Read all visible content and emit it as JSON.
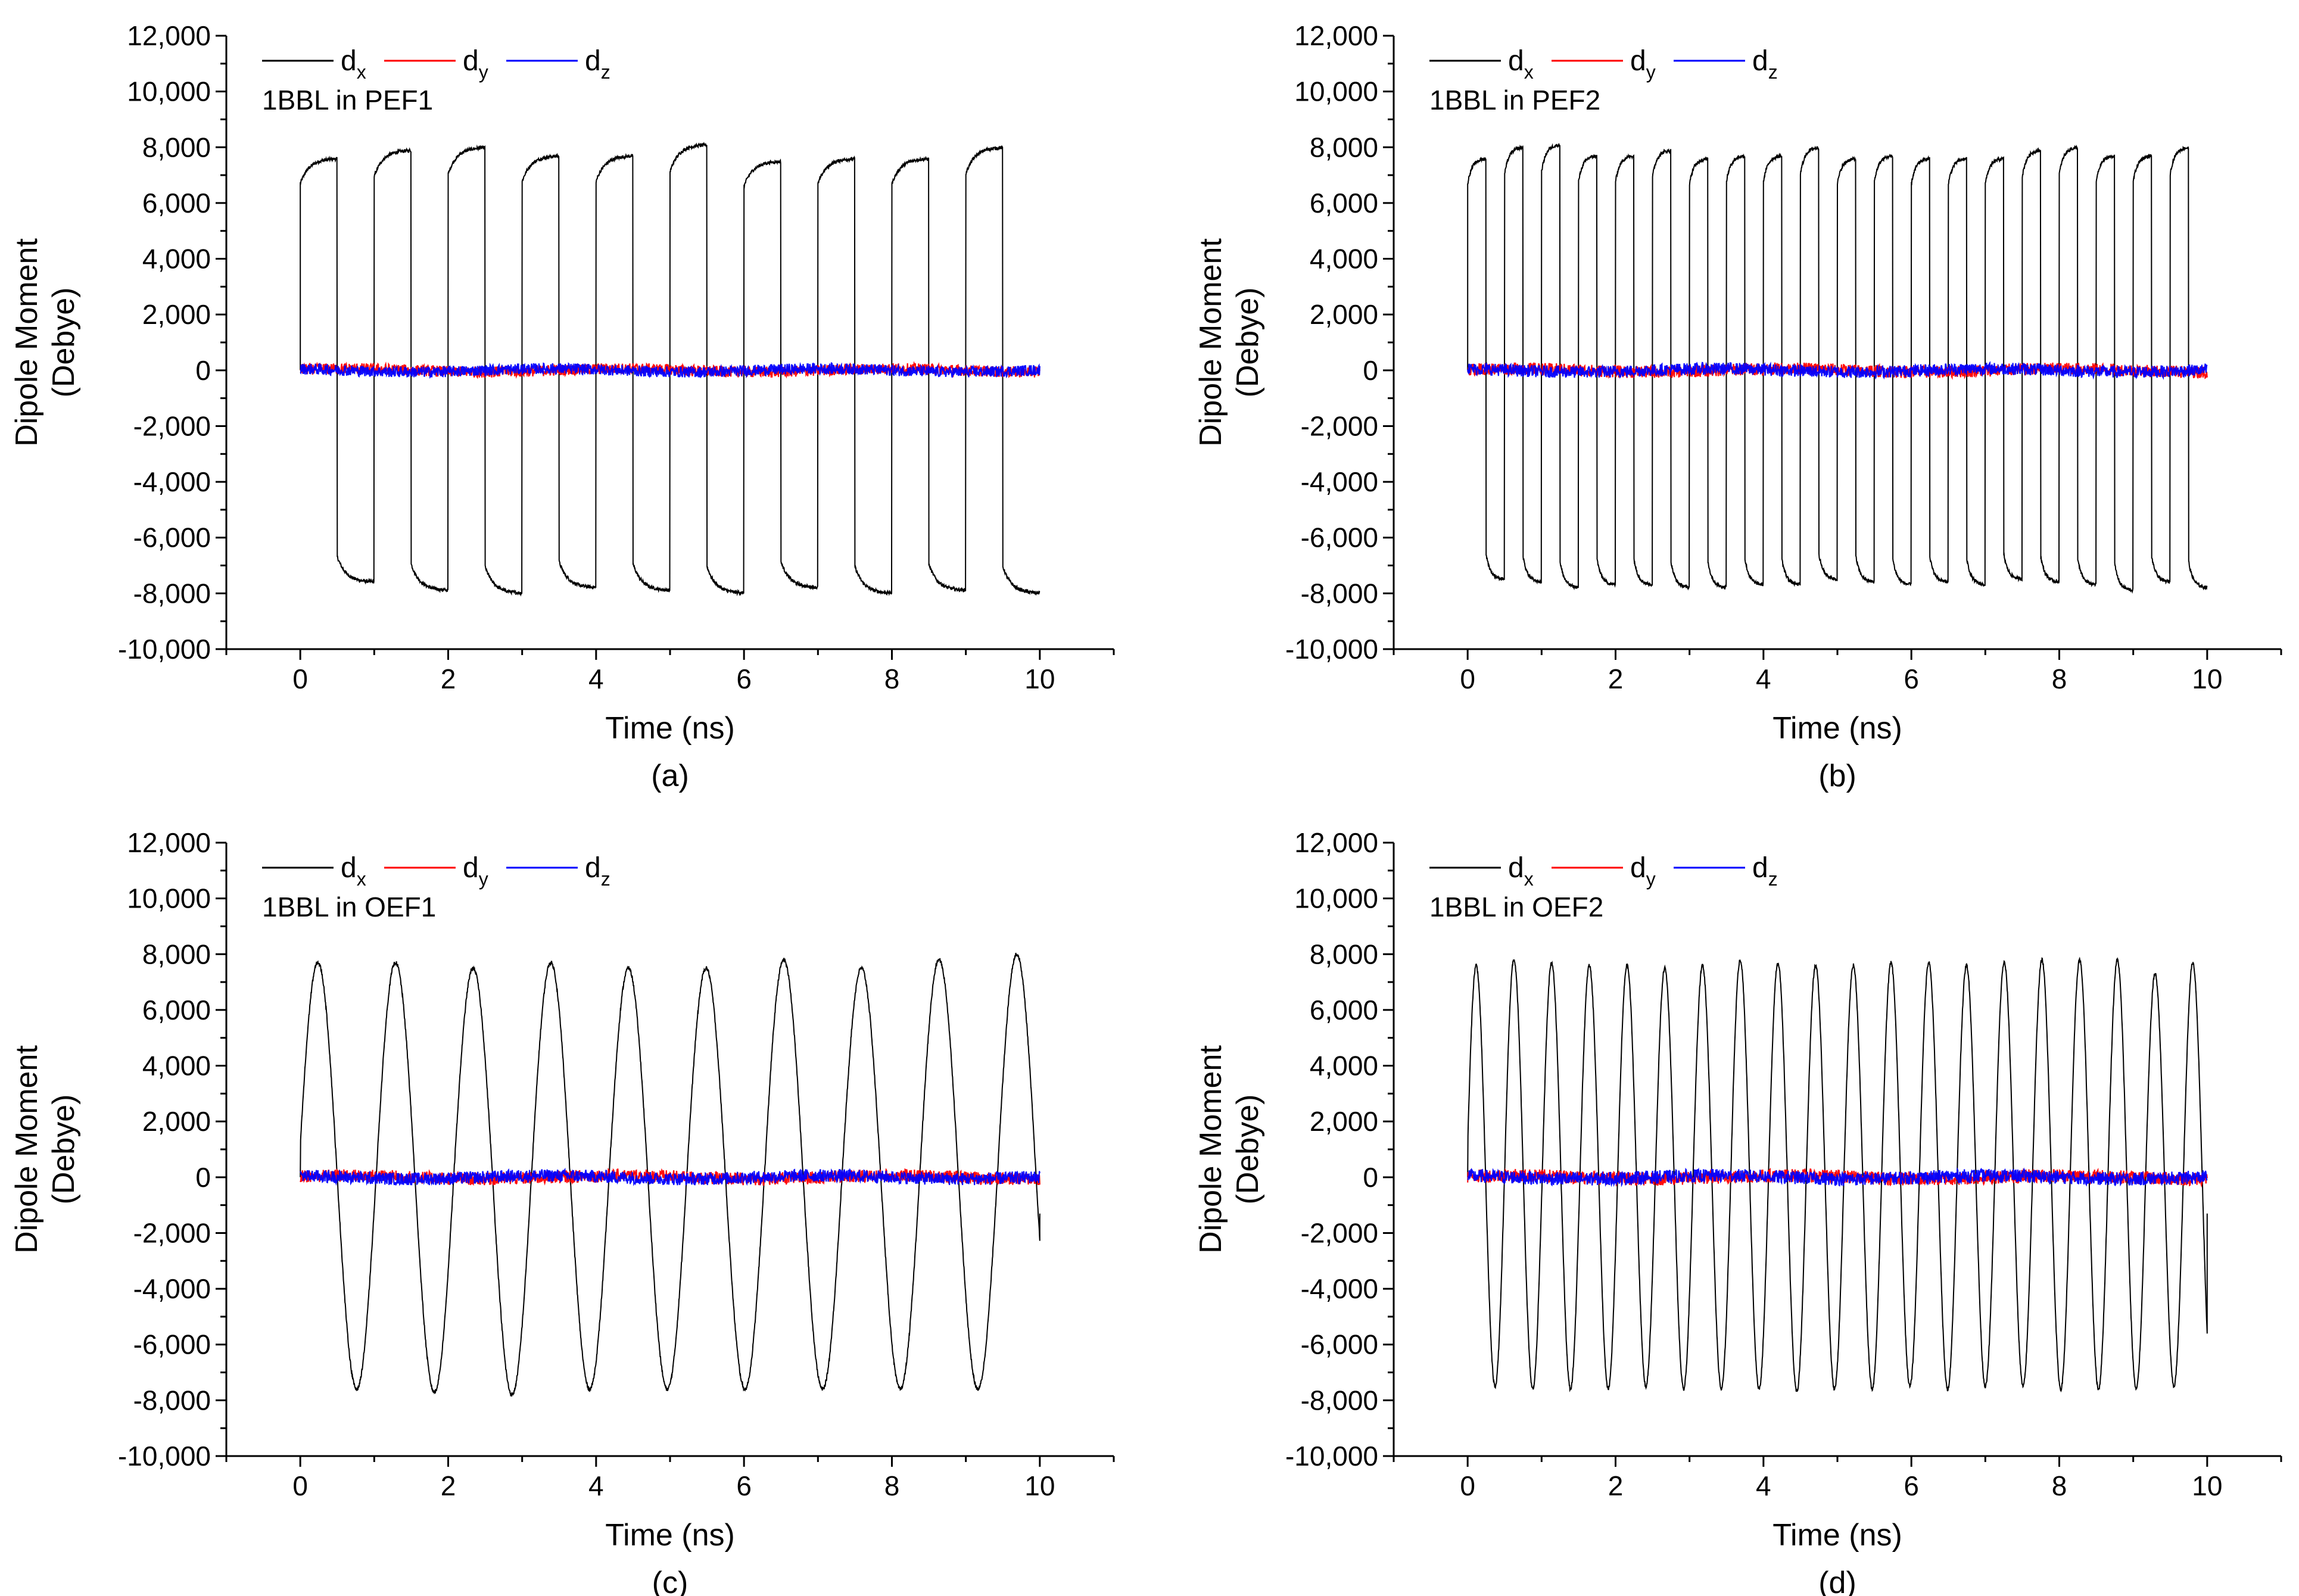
{
  "colors": {
    "dx": "#000000",
    "dy": "#ff0000",
    "dz": "#0000ff",
    "axis": "#000000",
    "background": "#ffffff"
  },
  "chart_data": [
    {
      "type": "line",
      "panel_label": "(a)",
      "annotation": "1BBL in PEF1",
      "xlabel": "Time (ns)",
      "ylabel": [
        "Dipole Moment",
        "(Debye)"
      ],
      "xlim": [
        -1,
        11
      ],
      "ylim": [
        -10000,
        12000
      ],
      "xticks": [
        "0",
        "2",
        "4",
        "6",
        "8",
        "10"
      ],
      "xtick_values": [
        0,
        2,
        4,
        6,
        8,
        10
      ],
      "yticks": [
        "-10,000",
        "-8,000",
        "-6,000",
        "-4,000",
        "-2,000",
        "0",
        "2,000",
        "4,000",
        "6,000",
        "8,000",
        "10,000",
        "12,000"
      ],
      "ytick_values": [
        -10000,
        -8000,
        -6000,
        -4000,
        -2000,
        0,
        2000,
        4000,
        6000,
        8000,
        10000,
        12000
      ],
      "legend": [
        {
          "name": "d",
          "sub": "x"
        },
        {
          "name": "d",
          "sub": "y"
        },
        {
          "name": "d",
          "sub": "z"
        }
      ],
      "waveform": "square",
      "period_ns": 1.0,
      "x_range": [
        0,
        10
      ],
      "dx_peaks": [
        7600,
        7900,
        8000,
        7700,
        7700,
        8100,
        7500,
        7600,
        7600,
        8000
      ],
      "dx_troughs": [
        -7600,
        -7900,
        -8000,
        -7800,
        -7900,
        -8000,
        -7800,
        -8000,
        -7900,
        -8000
      ],
      "noise_amplitude": 200
    },
    {
      "type": "line",
      "panel_label": "(b)",
      "annotation": "1BBL in PEF2",
      "xlabel": "Time (ns)",
      "ylabel": [
        "Dipole Moment",
        "(Debye)"
      ],
      "xlim": [
        -1,
        11
      ],
      "ylim": [
        -10000,
        12000
      ],
      "xticks": [
        "0",
        "2",
        "4",
        "6",
        "8",
        "10"
      ],
      "xtick_values": [
        0,
        2,
        4,
        6,
        8,
        10
      ],
      "yticks": [
        "-10,000",
        "-8,000",
        "-6,000",
        "-4,000",
        "-2,000",
        "0",
        "2,000",
        "4,000",
        "6,000",
        "8,000",
        "10,000",
        "12,000"
      ],
      "ytick_values": [
        -10000,
        -8000,
        -6000,
        -4000,
        -2000,
        0,
        2000,
        4000,
        6000,
        8000,
        10000,
        12000
      ],
      "legend": [
        {
          "name": "d",
          "sub": "x"
        },
        {
          "name": "d",
          "sub": "y"
        },
        {
          "name": "d",
          "sub": "z"
        }
      ],
      "waveform": "square",
      "period_ns": 0.5,
      "x_range": [
        0,
        10
      ],
      "dx_peaks": [
        7600,
        8000,
        8100,
        7700,
        7700,
        7900,
        7600,
        7700,
        7700,
        8000,
        7600,
        7700,
        7600,
        7600,
        7600,
        7900,
        8000,
        7700,
        7700,
        8000
      ],
      "dx_troughs": [
        -7500,
        -7600,
        -7800,
        -7700,
        -7700,
        -7800,
        -7800,
        -7700,
        -7700,
        -7500,
        -7600,
        -7700,
        -7600,
        -7700,
        -7500,
        -7600,
        -7700,
        -7900,
        -7600,
        -7800
      ],
      "noise_amplitude": 220
    },
    {
      "type": "line",
      "panel_label": "(c)",
      "annotation": "1BBL in OEF1",
      "xlabel": "Time (ns)",
      "ylabel": [
        "Dipole Moment",
        "(Debye)"
      ],
      "xlim": [
        -1,
        11
      ],
      "ylim": [
        -10000,
        12000
      ],
      "xticks": [
        "0",
        "2",
        "4",
        "6",
        "8",
        "10"
      ],
      "xtick_values": [
        0,
        2,
        4,
        6,
        8,
        10
      ],
      "yticks": [
        "-10,000",
        "-8,000",
        "-6,000",
        "-4,000",
        "-2,000",
        "0",
        "2,000",
        "4,000",
        "6,000",
        "8,000",
        "10,000",
        "12,000"
      ],
      "ytick_values": [
        -10000,
        -8000,
        -6000,
        -4000,
        -2000,
        0,
        2000,
        4000,
        6000,
        8000,
        10000,
        12000
      ],
      "legend": [
        {
          "name": "d",
          "sub": "x"
        },
        {
          "name": "d",
          "sub": "y"
        },
        {
          "name": "d",
          "sub": "z"
        }
      ],
      "waveform": "sine",
      "period_ns": 1.05,
      "x_range": [
        0,
        10
      ],
      "dx_peaks": [
        7700,
        7700,
        7500,
        7700,
        7500,
        7500,
        7800,
        7500,
        7800,
        8000
      ],
      "dx_troughs": [
        -7600,
        -7700,
        -7800,
        -7600,
        -7600,
        -7600,
        -7600,
        -7600,
        -7600,
        -7700
      ],
      "noise_amplitude": 230
    },
    {
      "type": "line",
      "panel_label": "(d)",
      "annotation": "1BBL in OEF2",
      "xlabel": "Time (ns)",
      "ylabel": [
        "Dipole Moment",
        "(Debye)"
      ],
      "xlim": [
        -1,
        11
      ],
      "ylim": [
        -10000,
        12000
      ],
      "xticks": [
        "0",
        "2",
        "4",
        "6",
        "8",
        "10"
      ],
      "xtick_values": [
        0,
        2,
        4,
        6,
        8,
        10
      ],
      "yticks": [
        "-10,000",
        "-8,000",
        "-6,000",
        "-4,000",
        "-2,000",
        "0",
        "2,000",
        "4,000",
        "6,000",
        "8,000",
        "10,000",
        "12,000"
      ],
      "ytick_values": [
        -10000,
        -8000,
        -6000,
        -4000,
        -2000,
        0,
        2000,
        4000,
        6000,
        8000,
        10000,
        12000
      ],
      "legend": [
        {
          "name": "d",
          "sub": "x"
        },
        {
          "name": "d",
          "sub": "y"
        },
        {
          "name": "d",
          "sub": "z"
        }
      ],
      "waveform": "sine",
      "period_ns": 0.51,
      "x_range": [
        0,
        10
      ],
      "dx_peaks": [
        7600,
        7800,
        7700,
        7600,
        7600,
        7500,
        7600,
        7800,
        7700,
        7600,
        7600,
        7700,
        7700,
        7600,
        7700,
        7800,
        7800,
        7800,
        7300,
        7700
      ],
      "dx_troughs": [
        -7500,
        -7600,
        -7600,
        -7600,
        -7500,
        -7600,
        -7600,
        -7600,
        -7700,
        -7600,
        -7600,
        -7500,
        -7600,
        -7500,
        -7500,
        -7600,
        -7600,
        -7600,
        -7500,
        -7600
      ],
      "noise_amplitude": 240
    }
  ]
}
